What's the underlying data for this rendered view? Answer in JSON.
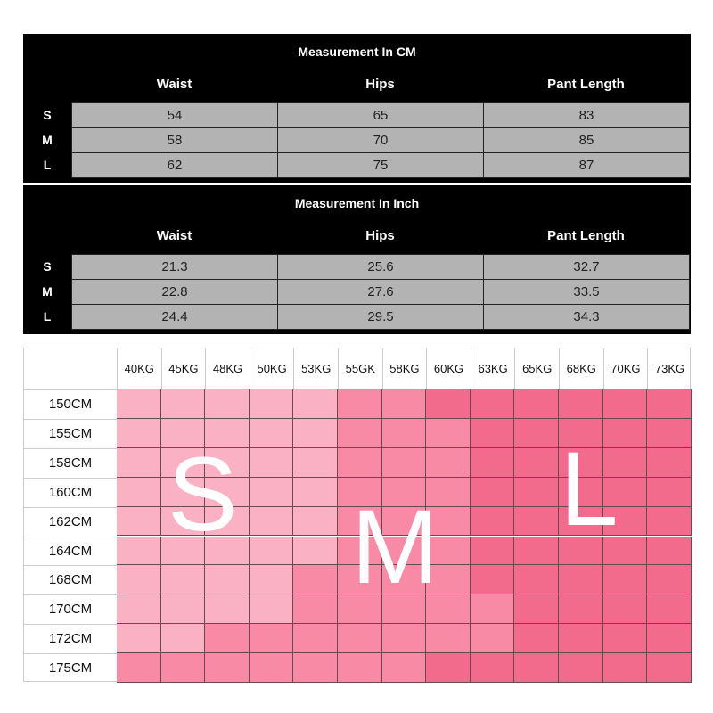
{
  "cm_table": {
    "title": "Measurement In CM",
    "headers": [
      "Waist",
      "Hips",
      "Pant Length"
    ],
    "rows": [
      {
        "size": "S",
        "values": [
          "54",
          "65",
          "83"
        ]
      },
      {
        "size": "M",
        "values": [
          "58",
          "70",
          "85"
        ]
      },
      {
        "size": "L",
        "values": [
          "62",
          "75",
          "87"
        ]
      }
    ]
  },
  "inch_table": {
    "title": "Measurement In Inch",
    "headers": [
      "Waist",
      "Hips",
      "Pant Length"
    ],
    "rows": [
      {
        "size": "S",
        "values": [
          "21.3",
          "25.6",
          "32.7"
        ]
      },
      {
        "size": "M",
        "values": [
          "22.8",
          "27.6",
          "33.5"
        ]
      },
      {
        "size": "L",
        "values": [
          "24.4",
          "29.5",
          "34.3"
        ]
      }
    ]
  },
  "size_grid": {
    "weights": [
      "40KG",
      "45KG",
      "48KG",
      "50KG",
      "53KG",
      "55GK",
      "58KG",
      "60KG",
      "63KG",
      "65KG",
      "68KG",
      "70KG",
      "73KG"
    ],
    "heights": [
      "150CM",
      "155CM",
      "158CM",
      "160CM",
      "162CM",
      "164CM",
      "168CM",
      "170CM",
      "172CM",
      "175CM"
    ],
    "sizes": [
      "SSSSSMMLLLLLL",
      "SSSSSMMMLLLLL",
      "SSSSSMMMLLLLL",
      "SSSSSMMMLLLLL",
      "SSSSSMMMLLLLL",
      "SSSSSMMMLLLLL",
      "SSSSMMMMLLLLL",
      "SSSSMMMMMLLLL",
      "SSMMMMMMMLLLL",
      "MMMMMMMLLLLLL"
    ],
    "labels": {
      "S": "S",
      "M": "M",
      "L": "L"
    },
    "colors": {
      "S": "#fbb1c4",
      "M": "#f98aa6",
      "L": "#f26a8c"
    }
  }
}
